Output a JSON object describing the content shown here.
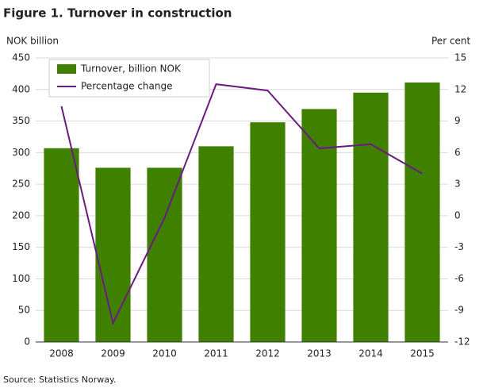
{
  "chart_data": {
    "type": "bar",
    "title": "Figure 1. Turnover in construction",
    "y_label": "NOK billion",
    "y2_label": "Per cent",
    "source": "Source: Statistics Norway.",
    "categories": [
      "2008",
      "2009",
      "2010",
      "2011",
      "2012",
      "2013",
      "2014",
      "2015"
    ],
    "series": [
      {
        "name": "Turnover, billion NOK",
        "color": "#3f8000",
        "values": [
          307,
          276,
          276,
          310,
          348,
          369,
          395,
          411
        ]
      },
      {
        "name": "Percentage change",
        "color": "#6a1b80",
        "axis": "y2",
        "values": [
          10.4,
          -10.2,
          -0.2,
          12.5,
          11.9,
          6.4,
          6.8,
          4.0
        ]
      }
    ],
    "ylim": [
      0,
      450
    ],
    "yticks": [
      0,
      50,
      100,
      150,
      200,
      250,
      300,
      350,
      400,
      450
    ],
    "y2lim": [
      -12,
      15
    ],
    "y2ticks": [
      -12,
      -9,
      -6,
      -3,
      0,
      3,
      6,
      9,
      12,
      15
    ],
    "grid": true,
    "legend": "top-left"
  }
}
